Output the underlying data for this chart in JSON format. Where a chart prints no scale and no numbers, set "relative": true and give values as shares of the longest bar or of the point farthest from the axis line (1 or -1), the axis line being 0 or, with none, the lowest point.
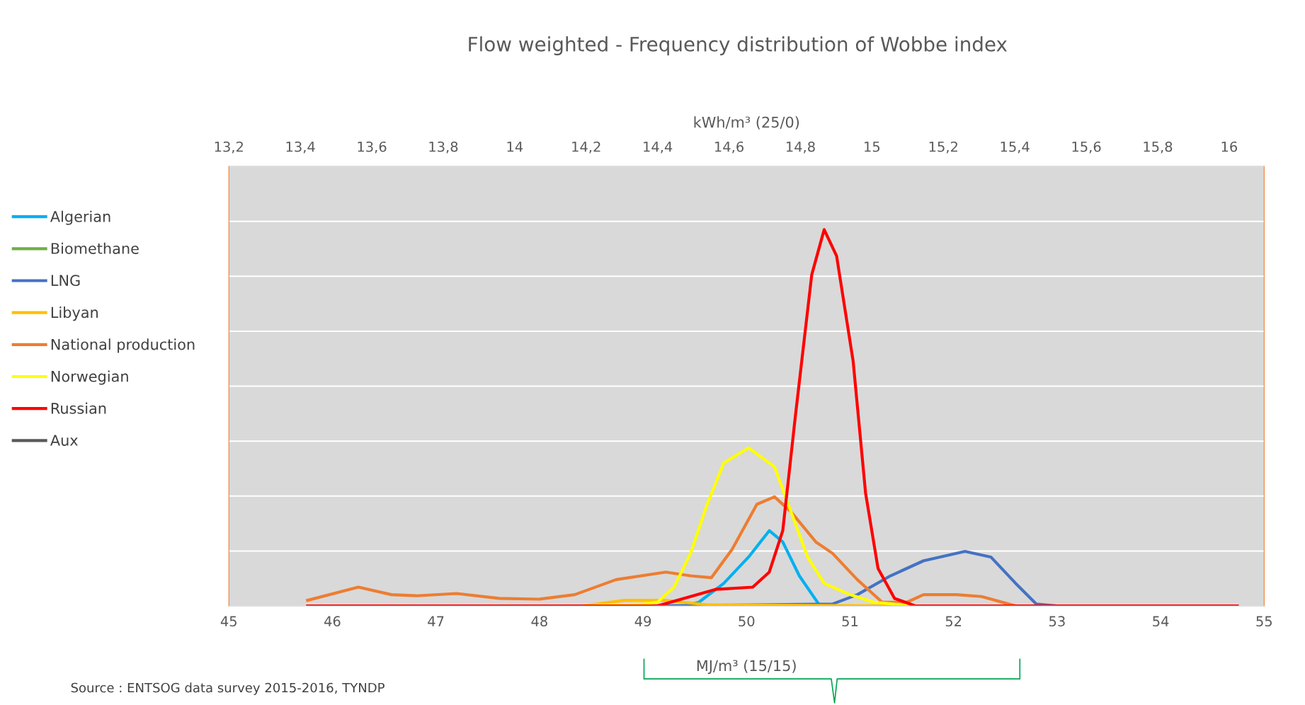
{
  "chart_data": {
    "type": "line",
    "title": "Flow weighted - Frequency distribution of Wobbe index",
    "xlabel": "MJ/m³ (15/15)",
    "x2label": "kWh/m³ (25/0)",
    "relative": true,
    "grid": "y",
    "legend": "left",
    "marker": "none",
    "line_style": "solid",
    "xlim": [
      45,
      55
    ],
    "xticks": [
      45,
      46,
      47,
      48,
      49,
      50,
      51,
      52,
      53,
      54,
      55
    ],
    "x2lim": [
      13.2,
      16.098
    ],
    "x2ticks": [
      {
        "value": 13.2,
        "label": "13,2"
      },
      {
        "value": 13.4,
        "label": "13,4"
      },
      {
        "value": 13.6,
        "label": "13,6"
      },
      {
        "value": 13.8,
        "label": "13,8"
      },
      {
        "value": 14,
        "label": "14"
      },
      {
        "value": 14.2,
        "label": "14,2"
      },
      {
        "value": 14.4,
        "label": "14,4"
      },
      {
        "value": 14.6,
        "label": "14,6"
      },
      {
        "value": 14.8,
        "label": "14,8"
      },
      {
        "value": 15,
        "label": "15"
      },
      {
        "value": 15.2,
        "label": "15,2"
      },
      {
        "value": 15.4,
        "label": "15,4"
      },
      {
        "value": 15.6,
        "label": "15,6"
      },
      {
        "value": 15.8,
        "label": "15,8"
      },
      {
        "value": 16,
        "label": "16"
      }
    ],
    "annotations": [
      "Source : ENTSOG data survey 2015-2016, TYNDP"
    ],
    "series": [
      {
        "name": "Algerian",
        "color": "#00b0f0",
        "x": [
          49.4,
          49.54,
          49.78,
          50.02,
          50.22,
          50.35,
          50.51,
          50.71,
          51.0
        ],
        "values": [
          0,
          0.01,
          0.06,
          0.13,
          0.2,
          0.17,
          0.08,
          0,
          0
        ]
      },
      {
        "name": "Biomethane",
        "color": "#70ad47"
      },
      {
        "name": "LNG",
        "color": "#4472c4",
        "x": [
          49.0,
          50.83,
          51.07,
          51.39,
          51.71,
          52.11,
          52.36,
          52.6,
          52.8,
          53.0,
          54.74
        ],
        "values": [
          0,
          0.005,
          0.03,
          0.08,
          0.12,
          0.145,
          0.13,
          0.06,
          0.005,
          0,
          0
        ]
      },
      {
        "name": "Libyan",
        "color": "#ffc000",
        "x": [
          48.42,
          48.82,
          49.22,
          49.62,
          51.6
        ],
        "values": [
          0,
          0.015,
          0.015,
          0.003,
          0
        ]
      },
      {
        "name": "National production",
        "color": "#ed7d31",
        "x": [
          45.76,
          46.25,
          46.57,
          46.81,
          47.2,
          47.61,
          48.0,
          48.34,
          48.74,
          49.22,
          49.46,
          49.66,
          49.86,
          50.1,
          50.27,
          50.43,
          50.67,
          50.83,
          51.07,
          51.31,
          51.55,
          51.71,
          52.03,
          52.27,
          52.6
        ],
        "values": [
          0.015,
          0.05,
          0.03,
          0.027,
          0.033,
          0.02,
          0.018,
          0.03,
          0.07,
          0.09,
          0.08,
          0.075,
          0.15,
          0.27,
          0.29,
          0.25,
          0.17,
          0.14,
          0.07,
          0.01,
          0.01,
          0.03,
          0.03,
          0.025,
          0
        ]
      },
      {
        "name": "Norwegian",
        "color": "#ffff00",
        "x": [
          48.4,
          49.0,
          49.14,
          49.3,
          49.46,
          49.62,
          49.78,
          50.02,
          50.27,
          50.43,
          50.59,
          50.75,
          51.0,
          51.23,
          51.6
        ],
        "values": [
          0,
          0.005,
          0.01,
          0.05,
          0.14,
          0.27,
          0.38,
          0.42,
          0.37,
          0.25,
          0.13,
          0.06,
          0.03,
          0.01,
          0
        ]
      },
      {
        "name": "Russian",
        "color": "#ff0000",
        "x": [
          45.76,
          49.14,
          49.7,
          50.06,
          50.22,
          50.35,
          50.47,
          50.63,
          50.75,
          50.87,
          51.03,
          51.15,
          51.27,
          51.43,
          51.63,
          54.74
        ],
        "values": [
          0,
          0,
          0.044,
          0.05,
          0.09,
          0.2,
          0.5,
          0.88,
          1.0,
          0.93,
          0.65,
          0.3,
          0.1,
          0.02,
          0,
          0
        ]
      },
      {
        "name": "Aux",
        "color": "#595959"
      }
    ]
  }
}
